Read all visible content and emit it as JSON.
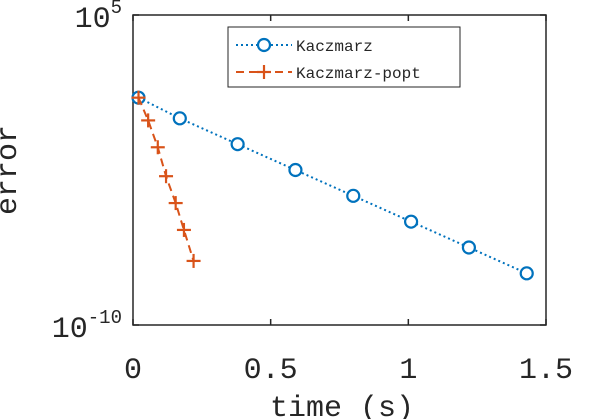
{
  "chart_data": {
    "type": "line",
    "xlabel": "time (s)",
    "ylabel": "error",
    "xlim": [
      0,
      1.5
    ],
    "ylim_log10": [
      -10,
      5
    ],
    "y_scale": "log",
    "grid": false,
    "legend_position": "top-center",
    "x_ticks": [
      {
        "value": 0,
        "label": "0"
      },
      {
        "value": 0.5,
        "label": "0.5"
      },
      {
        "value": 1,
        "label": "1"
      },
      {
        "value": 1.5,
        "label": "1.5"
      }
    ],
    "y_ticks": [
      {
        "log10": 5,
        "base": "10",
        "exp": "5"
      },
      {
        "log10": -10,
        "base": "10",
        "exp": "-10"
      }
    ],
    "series": [
      {
        "name": "Kaczmarz",
        "color": "#0072BD",
        "line_style": "dotted",
        "marker": "circle",
        "x": [
          0.02,
          0.17,
          0.38,
          0.59,
          0.8,
          1.01,
          1.22,
          1.43
        ],
        "log10_y": [
          1.0,
          0.0,
          -1.25,
          -2.5,
          -3.75,
          -5.0,
          -6.25,
          -7.5
        ]
      },
      {
        "name": "Kaczmarz-popt",
        "color": "#D95319",
        "line_style": "dashed",
        "marker": "plus",
        "x": [
          0.02,
          0.055,
          0.09,
          0.12,
          0.155,
          0.185,
          0.22
        ],
        "log10_y": [
          1.0,
          -0.1,
          -1.4,
          -2.8,
          -4.1,
          -5.4,
          -6.9
        ]
      }
    ]
  }
}
